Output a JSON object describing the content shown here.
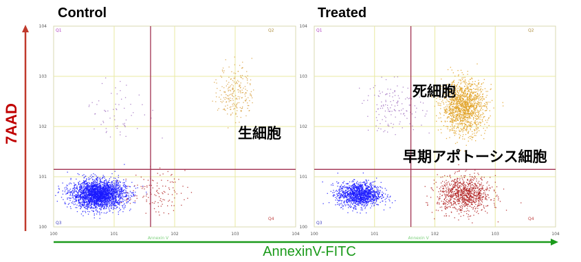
{
  "chart_data": [
    {
      "type": "scatter",
      "title": "Control",
      "xlabel": "AnnexinV-FITC",
      "ylabel": "7AAD",
      "xscale": "log",
      "yscale": "log",
      "xlim": [
        1,
        10000
      ],
      "ylim": [
        1,
        10000
      ],
      "x_ticks": [
        "100",
        "101",
        "102",
        "103",
        "104"
      ],
      "y_ticks": [
        "100",
        "101",
        "102",
        "103",
        "104"
      ],
      "x_axis_name": "Annexin V",
      "quadrant_gate": {
        "x": 40,
        "y": 14
      },
      "quadrant_labels": [
        "Q1",
        "Q2",
        "Q3",
        "Q4"
      ],
      "clusters": [
        {
          "quadrant": "Q3",
          "name": "",
          "color": "#1a1aff",
          "center": [
            5.5,
            4.5
          ],
          "count": 2600
        },
        {
          "quadrant": "Q4",
          "name": "",
          "color": "#b02020",
          "center": [
            45,
            5
          ],
          "count": 120
        },
        {
          "quadrant": "Q2",
          "name": "",
          "color": "#d8a040",
          "center": [
            1000,
            500
          ],
          "count": 220
        },
        {
          "quadrant": "Q1",
          "name": "",
          "color": "#a070c0",
          "center": [
            12,
            200
          ],
          "count": 60
        }
      ],
      "annotations": [
        "生細胞"
      ]
    },
    {
      "type": "scatter",
      "title": "Treated",
      "xlabel": "AnnexinV-FITC",
      "ylabel": "7AAD",
      "xscale": "log",
      "yscale": "log",
      "xlim": [
        1,
        10000
      ],
      "ylim": [
        1,
        10000
      ],
      "x_ticks": [
        "100",
        "101",
        "102",
        "103",
        "104"
      ],
      "y_ticks": [
        "100",
        "101",
        "102",
        "103",
        "104"
      ],
      "x_axis_name": "Annexin V",
      "quadrant_gate": {
        "x": 40,
        "y": 14
      },
      "quadrant_labels": [
        "Q1",
        "Q2",
        "Q3",
        "Q4"
      ],
      "clusters": [
        {
          "quadrant": "Q3",
          "name": "",
          "color": "#1a1aff",
          "center": [
            5.5,
            4.5
          ],
          "count": 1300
        },
        {
          "quadrant": "Q4",
          "name": "",
          "color": "#b02020",
          "center": [
            300,
            4.5
          ],
          "count": 950
        },
        {
          "quadrant": "Q2",
          "name": "",
          "color": "#e0a020",
          "center": [
            300,
            250
          ],
          "count": 1400
        },
        {
          "quadrant": "Q1",
          "name": "",
          "color": "#a070c0",
          "center": [
            20,
            250
          ],
          "count": 140
        }
      ],
      "annotations": [
        "死細胞",
        "早期アポトーシス細胞"
      ]
    }
  ],
  "labels": {
    "control_title": "Control",
    "treated_title": "Treated",
    "y_axis": "7AAD",
    "x_axis": "AnnexinV-FITC",
    "live": "生細胞",
    "dead": "死細胞",
    "early_apoptotic": "早期アポトーシス細胞"
  },
  "colors": {
    "y_axis_arrow": "#c0392b",
    "x_axis_arrow": "#1a9a1a",
    "gate_line": "#a03050",
    "grid": "#e8e8a0"
  }
}
